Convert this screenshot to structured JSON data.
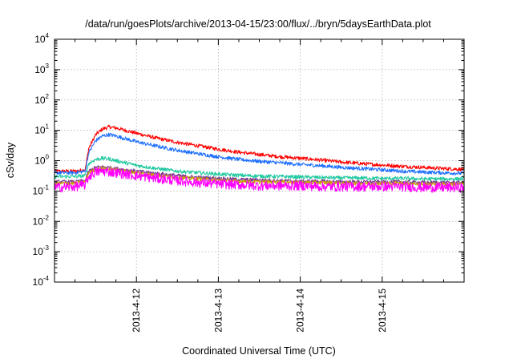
{
  "chart_data": {
    "type": "line",
    "title": "/data/run/goesPlots/archive/2013-04-15/23:00/flux/../bryn/5daysEarthData.plot",
    "xlabel": "Coordinated Universal Time (UTC)",
    "ylabel": "cSv/day",
    "y_scale": "log",
    "ylim": [
      0.0001,
      10000
    ],
    "xlim": [
      "2013-04-11T00:00",
      "2013-04-16T00:00"
    ],
    "grid": true,
    "x_ticks": [
      {
        "label": "2013-4-12",
        "value": "2013-04-12T00:00"
      },
      {
        "label": "2013-4-13",
        "value": "2013-04-13T00:00"
      },
      {
        "label": "2013-4-14",
        "value": "2013-04-14T00:00"
      },
      {
        "label": "2013-4-15",
        "value": "2013-04-15T00:00"
      }
    ],
    "y_ticks": [
      {
        "base": "10",
        "exp": "-4",
        "value": 0.0001
      },
      {
        "base": "10",
        "exp": "-3",
        "value": 0.001
      },
      {
        "base": "10",
        "exp": "-2",
        "value": 0.01
      },
      {
        "base": "10",
        "exp": "-1",
        "value": 0.1
      },
      {
        "base": "10",
        "exp": "0",
        "value": 1
      },
      {
        "base": "10",
        "exp": "1",
        "value": 10
      },
      {
        "base": "10",
        "exp": "2",
        "value": 100
      },
      {
        "base": "10",
        "exp": "3",
        "value": 1000
      },
      {
        "base": "10",
        "exp": "4",
        "value": 10000
      }
    ],
    "x": [
      "2013-04-11T00:00",
      "2013-04-11T06:00",
      "2013-04-11T09:00",
      "2013-04-11T10:00",
      "2013-04-11T12:00",
      "2013-04-11T14:00",
      "2013-04-11T16:00",
      "2013-04-11T18:00",
      "2013-04-12T00:00",
      "2013-04-12T06:00",
      "2013-04-12T12:00",
      "2013-04-12T18:00",
      "2013-04-13T00:00",
      "2013-04-13T06:00",
      "2013-04-13T12:00",
      "2013-04-13T18:00",
      "2013-04-14T00:00",
      "2013-04-14T06:00",
      "2013-04-14T12:00",
      "2013-04-14T18:00",
      "2013-04-15T00:00",
      "2013-04-15T06:00",
      "2013-04-15T12:00",
      "2013-04-15T18:00",
      "2013-04-16T00:00"
    ],
    "series": [
      {
        "color": "#ff0000",
        "values": [
          0.45,
          0.45,
          0.5,
          2.5,
          7,
          11,
          13,
          12,
          8,
          5.5,
          4,
          3.1,
          2.4,
          1.9,
          1.6,
          1.35,
          1.2,
          1.05,
          0.9,
          0.8,
          0.72,
          0.65,
          0.6,
          0.55,
          0.52
        ]
      },
      {
        "color": "#1e6fff",
        "values": [
          0.4,
          0.4,
          0.45,
          1.8,
          4.5,
          6.5,
          7.2,
          6.5,
          4.2,
          3,
          2.2,
          1.7,
          1.35,
          1.1,
          0.95,
          0.85,
          0.75,
          0.68,
          0.6,
          0.55,
          0.5,
          0.45,
          0.42,
          0.4,
          0.38
        ]
      },
      {
        "color": "#20c9a0",
        "values": [
          0.3,
          0.3,
          0.32,
          0.8,
          1.1,
          1.2,
          1.15,
          1.0,
          0.7,
          0.55,
          0.45,
          0.4,
          0.36,
          0.33,
          0.31,
          0.3,
          0.29,
          0.28,
          0.27,
          0.27,
          0.26,
          0.26,
          0.25,
          0.25,
          0.25
        ]
      },
      {
        "color": "#7a3b8f",
        "values": [
          0.2,
          0.2,
          0.22,
          0.45,
          0.6,
          0.62,
          0.6,
          0.55,
          0.45,
          0.38,
          0.32,
          0.28,
          0.26,
          0.24,
          0.23,
          0.22,
          0.21,
          0.21,
          0.2,
          0.2,
          0.2,
          0.2,
          0.19,
          0.19,
          0.19
        ]
      },
      {
        "color": "#c8a000",
        "values": [
          0.18,
          0.18,
          0.2,
          0.4,
          0.52,
          0.55,
          0.53,
          0.5,
          0.4,
          0.33,
          0.28,
          0.25,
          0.23,
          0.21,
          0.2,
          0.2,
          0.19,
          0.19,
          0.18,
          0.18,
          0.18,
          0.18,
          0.17,
          0.17,
          0.17
        ]
      },
      {
        "color": "#ff00ff",
        "values": [
          0.13,
          0.14,
          0.16,
          0.3,
          0.42,
          0.45,
          0.43,
          0.4,
          0.32,
          0.26,
          0.22,
          0.19,
          0.17,
          0.16,
          0.15,
          0.15,
          0.15,
          0.14,
          0.14,
          0.14,
          0.14,
          0.14,
          0.13,
          0.13,
          0.13
        ]
      }
    ]
  }
}
